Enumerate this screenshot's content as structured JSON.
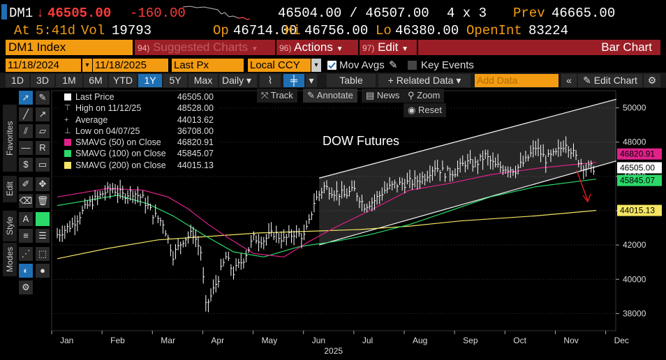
{
  "header": {
    "ticker": "DM1",
    "arrow": "↓",
    "last": "46505.00",
    "change": "-160.00",
    "bidask": "46504.00 / 46507.00",
    "size": "4 x 3",
    "prev_label": "Prev",
    "prev": "46665.00",
    "at_label": "At",
    "time": "5:41d",
    "vol_label": "Vol",
    "vol": "19793",
    "op_label": "Op",
    "op": "46714.00",
    "hi_label": "Hi",
    "hi": "46756.00",
    "lo_label": "Lo",
    "lo": "46380.00",
    "oi_label": "OpenInt",
    "oi": "83224"
  },
  "bar1": {
    "security": "DM1 Index",
    "suggested_num": "94)",
    "suggested": "Suggested Charts",
    "actions_num": "96)",
    "actions": "Actions",
    "edit_num": "97)",
    "edit": "Edit",
    "chart_type": "Bar Chart"
  },
  "bar2": {
    "start_date": "11/18/2024",
    "end_date": "11/18/2025",
    "field": "Last Px",
    "currency": "Local CCY",
    "mov_avgs": "Mov Avgs",
    "key_events": "Key Events"
  },
  "bar3": {
    "periods": [
      "1D",
      "3D",
      "1M",
      "6M",
      "YTD",
      "1Y",
      "5Y",
      "Max"
    ],
    "active_period": "1Y",
    "frequency": "Daily",
    "table": "Table",
    "related": "+ Related Data",
    "add_data_placeholder": "Add Data",
    "edit_chart": "Edit Chart"
  },
  "floating": {
    "track": "Track",
    "annotate": "Annotate",
    "news": "News",
    "zoom": "Zoom",
    "reset": "Reset"
  },
  "side_tabs": [
    "Favorites",
    "Edit",
    "Style",
    "Modes"
  ],
  "legend": [
    {
      "name": "Last Price",
      "value": "46505.00",
      "color": "#ffffff",
      "marker": "box"
    },
    {
      "name": "High on 11/12/25",
      "value": "48528.00",
      "color": "#bbbbbb",
      "marker": "high"
    },
    {
      "name": "Average",
      "value": "44013.62",
      "color": "#bbbbbb",
      "marker": "avg"
    },
    {
      "name": "Low on 04/07/25",
      "value": "36708.00",
      "color": "#bbbbbb",
      "marker": "low"
    },
    {
      "name": "SMAVG (50)  on Close",
      "value": "46820.91",
      "color": "#e0218a",
      "marker": "box"
    },
    {
      "name": "SMAVG (100)  on Close",
      "value": "45845.07",
      "color": "#2bd96a",
      "marker": "box"
    },
    {
      "name": "SMAVG (200)  on Close",
      "value": "44015.13",
      "color": "#f5e663",
      "marker": "box"
    }
  ],
  "chart_data": {
    "type": "line",
    "title": "DOW Futures",
    "x_labels": [
      "Jan",
      "Feb",
      "Mar",
      "Apr",
      "May",
      "Jun",
      "Jul",
      "Aug",
      "Sep",
      "Oct",
      "Nov",
      "Dec"
    ],
    "year_label": "2025",
    "ylim": [
      37000,
      51000
    ],
    "yticks": [
      38000,
      40000,
      42000,
      44000,
      46000,
      48000,
      50000
    ],
    "price_x": [
      0.0,
      0.3,
      0.6,
      0.9,
      1.1,
      1.3,
      1.5,
      1.7,
      1.9,
      2.1,
      2.3,
      2.5,
      2.7,
      2.85,
      2.95,
      3.05,
      3.2,
      3.35,
      3.5,
      3.7,
      3.9,
      4.1,
      4.3,
      4.5,
      4.7,
      4.9,
      5.0,
      5.1,
      5.3,
      5.5,
      5.7,
      5.9,
      6.1,
      6.3,
      6.5,
      6.7,
      6.9,
      7.1,
      7.3,
      7.5,
      7.7,
      7.9,
      8.1,
      8.3,
      8.5,
      8.7,
      8.9,
      9.1,
      9.3,
      9.5,
      9.7,
      9.9,
      10.1,
      10.3,
      10.5,
      10.7
    ],
    "price_y": [
      42600,
      43200,
      44300,
      45000,
      45300,
      44900,
      45100,
      44700,
      43800,
      43300,
      41400,
      42300,
      42700,
      41600,
      38400,
      39000,
      40100,
      41300,
      40400,
      41200,
      42400,
      42300,
      42700,
      42300,
      42700,
      42500,
      43300,
      44500,
      45400,
      45100,
      44900,
      45200,
      44300,
      44600,
      45200,
      45500,
      45600,
      45700,
      46000,
      46600,
      46200,
      46300,
      46800,
      46700,
      47200,
      46600,
      46500,
      46400,
      46900,
      47700,
      47000,
      47300,
      48000,
      47100,
      46500,
      46505
    ],
    "sma50_y": [
      44800,
      45300,
      45200,
      44800,
      44100,
      43200,
      42400,
      41500,
      41300,
      42200,
      43000,
      44000,
      45200,
      45600,
      46100,
      46500,
      46820
    ],
    "sma50_x": [
      0.0,
      1.0,
      1.7,
      2.2,
      2.6,
      3.0,
      3.4,
      3.9,
      4.5,
      5.0,
      5.5,
      6.2,
      7.0,
      7.8,
      8.6,
      9.6,
      10.7
    ],
    "sma100_y": [
      44300,
      44600,
      44900,
      44400,
      43700,
      42600,
      41600,
      41300,
      41900,
      42200,
      42600,
      43200,
      44000,
      44800,
      45400,
      45845
    ],
    "sma100_x": [
      0.0,
      0.6,
      1.2,
      1.8,
      2.3,
      2.9,
      3.5,
      4.1,
      4.8,
      5.5,
      6.2,
      7.0,
      7.8,
      8.6,
      9.5,
      10.7
    ],
    "sma200_y": [
      41200,
      41800,
      42300,
      42500,
      42700,
      42800,
      42900,
      43100,
      43400,
      43700,
      44015
    ],
    "sma200_x": [
      0.0,
      1.0,
      2.0,
      3.0,
      4.0,
      5.0,
      6.0,
      7.0,
      8.0,
      9.5,
      10.7
    ],
    "channel_upper": [
      [
        5.2,
        45900
      ],
      [
        11.1,
        50500
      ]
    ],
    "channel_lower": [
      [
        5.2,
        42000
      ],
      [
        11.1,
        46900
      ]
    ],
    "price_tags": [
      {
        "value": "46820.91",
        "y": 46820.91,
        "color": "#e0218a"
      },
      {
        "value": "46505.00",
        "y": 46505,
        "color": "#ffffff"
      },
      {
        "value": "45845.07",
        "y": 45845.07,
        "color": "#2bd96a"
      },
      {
        "value": "44015.13",
        "y": 44015.13,
        "color": "#f5e663"
      }
    ]
  }
}
